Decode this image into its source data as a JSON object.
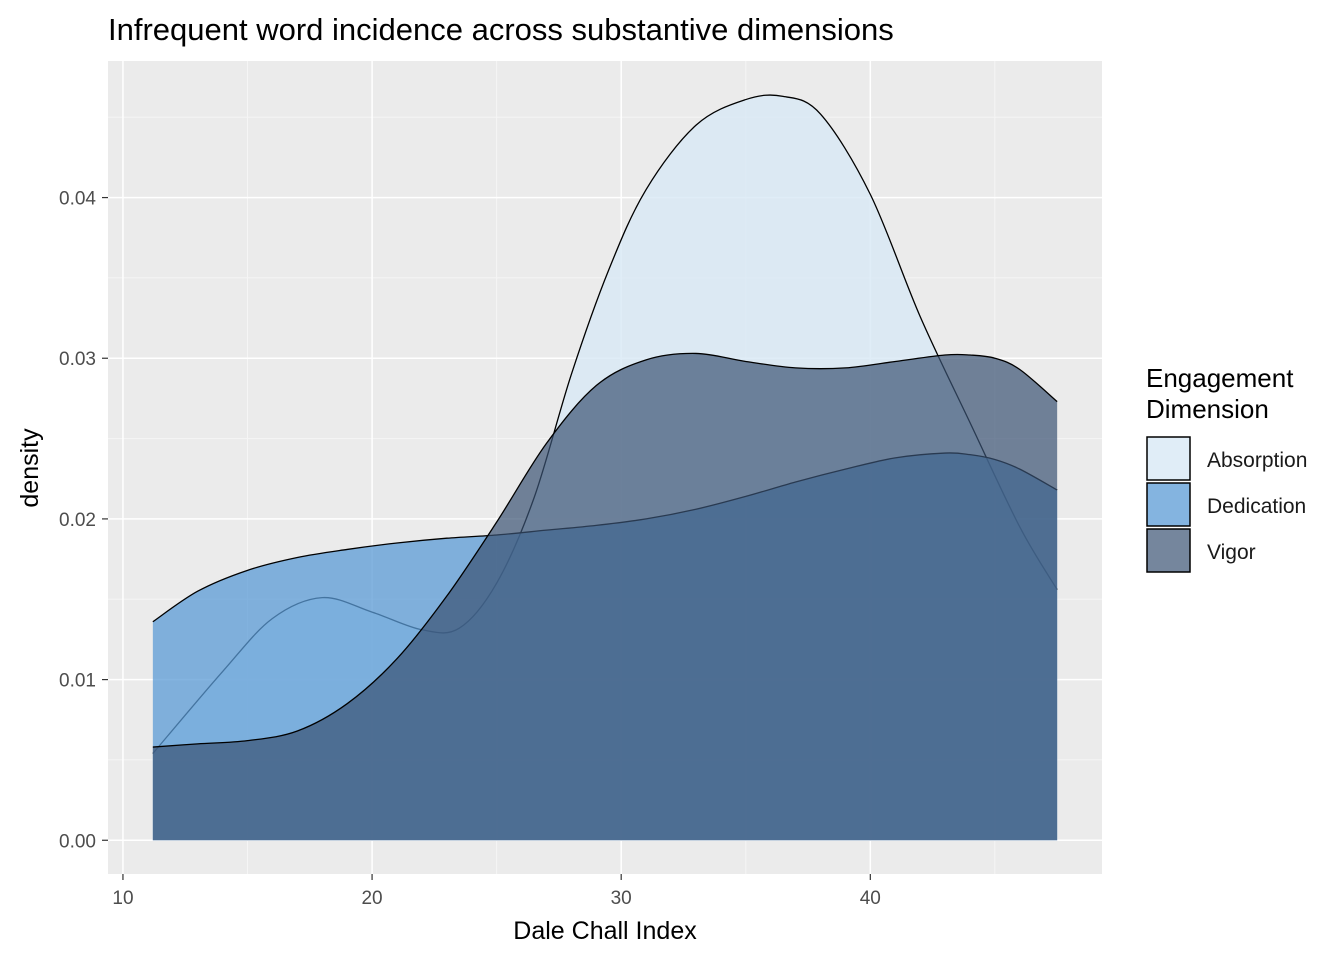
{
  "chart_data": {
    "type": "area",
    "title": "Infrequent word incidence across substantive dimensions",
    "xlabel": "Dale Chall Index",
    "ylabel": "density",
    "xlim": [
      9.4,
      49.3
    ],
    "ylim": [
      -0.0021,
      0.0485
    ],
    "x_ticks": [
      10,
      20,
      30,
      40
    ],
    "x_tick_labels": [
      "10",
      "20",
      "30",
      "40"
    ],
    "y_ticks": [
      0,
      0.01,
      0.02,
      0.03,
      0.04
    ],
    "y_tick_labels": [
      "0.00",
      "0.01",
      "0.02",
      "0.03",
      "0.04"
    ],
    "grid": true,
    "legend": {
      "title_lines": [
        "Engagement",
        "Dimension"
      ],
      "position": "right"
    },
    "series": [
      {
        "name": "Absorption",
        "fill": "#d8e9f5",
        "opacity": 0.8,
        "x": [
          11.2,
          14,
          16,
          18,
          20,
          22,
          23.5,
          25,
          26.5,
          28,
          29.5,
          31,
          33,
          35,
          36.5,
          38,
          40,
          42,
          44,
          46,
          47.5
        ],
        "y": [
          0.0054,
          0.0105,
          0.0138,
          0.0151,
          0.0142,
          0.0131,
          0.0132,
          0.016,
          0.0213,
          0.029,
          0.0355,
          0.0405,
          0.0445,
          0.0461,
          0.0463,
          0.0452,
          0.0402,
          0.0326,
          0.026,
          0.0195,
          0.0156
        ]
      },
      {
        "name": "Dedication",
        "fill": "#5b9bd5",
        "opacity": 0.75,
        "x": [
          11.2,
          13,
          15,
          17,
          19,
          21,
          23,
          25,
          27,
          29,
          31,
          33,
          35,
          37,
          39,
          41,
          43,
          44,
          45,
          46,
          47.5
        ],
        "y": [
          0.0136,
          0.0155,
          0.0168,
          0.0176,
          0.0181,
          0.0185,
          0.0188,
          0.019,
          0.0193,
          0.0196,
          0.02,
          0.0206,
          0.0214,
          0.0223,
          0.0231,
          0.0238,
          0.0241,
          0.024,
          0.0237,
          0.0231,
          0.0218
        ]
      },
      {
        "name": "Vigor",
        "fill": "#3b5373",
        "opacity": 0.7,
        "x": [
          11.2,
          13,
          15,
          17,
          19,
          21,
          23,
          25,
          27,
          29,
          31,
          33,
          35,
          37,
          39,
          41,
          43,
          44,
          45,
          46,
          47.5
        ],
        "y": [
          0.0058,
          0.006,
          0.0062,
          0.0068,
          0.0085,
          0.0113,
          0.0152,
          0.0198,
          0.0247,
          0.0283,
          0.0299,
          0.0303,
          0.0298,
          0.0294,
          0.0294,
          0.0298,
          0.0302,
          0.0302,
          0.03,
          0.0293,
          0.0273
        ]
      }
    ]
  }
}
